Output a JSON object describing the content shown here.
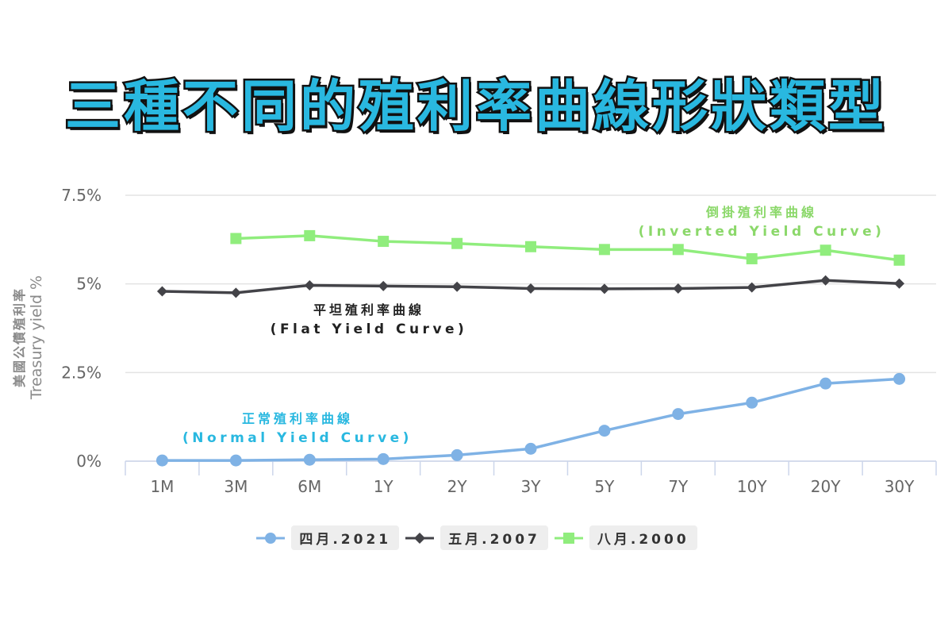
{
  "title": "三種不同的殖利率曲線形狀類型",
  "chart_data": {
    "type": "line",
    "categories": [
      "1M",
      "3M",
      "6M",
      "1Y",
      "2Y",
      "3Y",
      "5Y",
      "7Y",
      "10Y",
      "20Y",
      "30Y"
    ],
    "y_ticks": [
      "0%",
      "2.5%",
      "5%",
      "7.5%"
    ],
    "ylim": [
      0,
      7.5
    ],
    "ylabel_cn": "美國公債殖利率",
    "ylabel_en": "Treasury yield %",
    "grid": true,
    "legend_position": "bottom",
    "series": [
      {
        "name": "四月.2021",
        "color": "#7fb2e5",
        "marker": "circle",
        "values": [
          0.02,
          0.02,
          0.04,
          0.06,
          0.17,
          0.35,
          0.86,
          1.33,
          1.65,
          2.19,
          2.32
        ]
      },
      {
        "name": "五月.2007",
        "color": "#434348",
        "marker": "diamond",
        "values": [
          4.79,
          4.75,
          4.96,
          4.94,
          4.92,
          4.87,
          4.86,
          4.87,
          4.9,
          5.1,
          5.01
        ]
      },
      {
        "name": "八月.2000",
        "color": "#90ed7d",
        "marker": "square",
        "values": [
          null,
          6.28,
          6.36,
          6.2,
          6.14,
          6.05,
          5.97,
          5.97,
          5.71,
          5.95,
          5.67
        ]
      }
    ],
    "annotations": [
      {
        "id": "inverted",
        "cn": "倒掛殖利率曲線",
        "en": "(Inverted Yield Curve)",
        "color": "#8bd86a"
      },
      {
        "id": "flat",
        "cn": "平坦殖利率曲線",
        "en": "(Flat Yield Curve)",
        "color": "#222222"
      },
      {
        "id": "normal",
        "cn": "正常殖利率曲線",
        "en": "(Normal Yield Curve)",
        "color": "#29b8e0"
      }
    ]
  }
}
